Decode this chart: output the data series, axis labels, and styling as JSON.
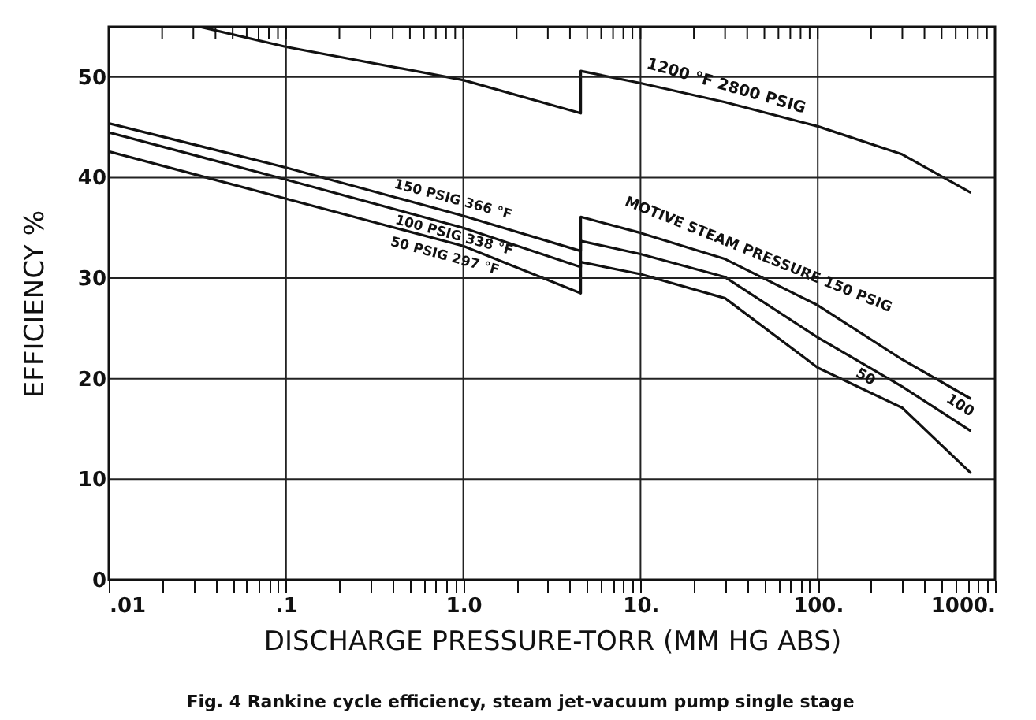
{
  "chart_data": {
    "type": "line",
    "xlabel": "DISCHARGE PRESSURE-TORR (MM HG ABS)",
    "ylabel": "EFFICIENCY %",
    "log": "x",
    "xlim": [
      0.01,
      1000
    ],
    "ylim": [
      0,
      55
    ],
    "xticks": [
      {
        "value": 0.01,
        "label": ".01"
      },
      {
        "value": 0.02,
        "label": null
      },
      {
        "value": 0.03,
        "label": null
      },
      {
        "value": 0.04,
        "label": null
      },
      {
        "value": 0.05,
        "label": null
      },
      {
        "value": 0.06,
        "label": null
      },
      {
        "value": 0.07,
        "label": null
      },
      {
        "value": 0.08,
        "label": null
      },
      {
        "value": 0.09,
        "label": null
      },
      {
        "value": 0.1,
        "label": ".1"
      },
      {
        "value": 0.2,
        "label": null
      },
      {
        "value": 0.3,
        "label": null
      },
      {
        "value": 0.4,
        "label": null
      },
      {
        "value": 0.5,
        "label": null
      },
      {
        "value": 0.6,
        "label": null
      },
      {
        "value": 0.7,
        "label": null
      },
      {
        "value": 0.8,
        "label": null
      },
      {
        "value": 0.9,
        "label": null
      },
      {
        "value": 1,
        "label": "1.0"
      },
      {
        "value": 2,
        "label": null
      },
      {
        "value": 3,
        "label": null
      },
      {
        "value": 4,
        "label": null
      },
      {
        "value": 5,
        "label": null
      },
      {
        "value": 6,
        "label": null
      },
      {
        "value": 7,
        "label": null
      },
      {
        "value": 8,
        "label": null
      },
      {
        "value": 9,
        "label": null
      },
      {
        "value": 10,
        "label": "10."
      },
      {
        "value": 20,
        "label": null
      },
      {
        "value": 30,
        "label": null
      },
      {
        "value": 40,
        "label": null
      },
      {
        "value": 50,
        "label": null
      },
      {
        "value": 60,
        "label": null
      },
      {
        "value": 70,
        "label": null
      },
      {
        "value": 80,
        "label": null
      },
      {
        "value": 90,
        "label": null
      },
      {
        "value": 100,
        "label": "100."
      },
      {
        "value": 200,
        "label": null
      },
      {
        "value": 300,
        "label": null
      },
      {
        "value": 400,
        "label": null
      },
      {
        "value": 500,
        "label": null
      },
      {
        "value": 600,
        "label": null
      },
      {
        "value": 700,
        "label": null
      },
      {
        "value": 800,
        "label": null
      },
      {
        "value": 900,
        "label": null
      },
      {
        "value": 1000,
        "label": "1000."
      }
    ],
    "yticks": [
      0,
      10,
      20,
      30,
      40,
      50
    ],
    "grid": true,
    "marker": "none",
    "line_style": "solid",
    "series": [
      {
        "color": "#111111",
        "x": [
          0.0328,
          0.1,
          1,
          4.6,
          4.6,
          10,
          30,
          100,
          300,
          731
        ],
        "values": [
          55,
          53.0,
          49.7,
          46.4,
          50.6,
          49.4,
          47.5,
          45.1,
          42.3,
          38.5
        ]
      },
      {
        "color": "#111111",
        "x": [
          0.01,
          0.1,
          1,
          4.6,
          4.6,
          10,
          30,
          100,
          300,
          731
        ],
        "values": [
          45.4,
          41.0,
          36.2,
          32.7,
          36.1,
          34.5,
          31.9,
          27.3,
          21.9,
          18.0
        ]
      },
      {
        "color": "#111111",
        "x": [
          0.01,
          0.1,
          1,
          4.6,
          4.6,
          10,
          30,
          100,
          300,
          731
        ],
        "values": [
          44.5,
          39.8,
          35.0,
          31.1,
          33.7,
          32.4,
          30.1,
          24.1,
          19.2,
          14.8
        ]
      },
      {
        "color": "#111111",
        "x": [
          0.01,
          0.1,
          1,
          4.6,
          4.6,
          10,
          30,
          100,
          300,
          731
        ],
        "values": [
          42.6,
          37.9,
          33.2,
          28.5,
          31.6,
          30.4,
          28.0,
          21.1,
          17.1,
          10.6
        ]
      }
    ],
    "annotations": [
      "1200 °F  2800 PSIG",
      "150 PSIG  366 °F",
      "100 PSIG  338 °F",
      "50 PSIG  297 °F",
      "MOTIVE STEAM PRESSURE 150 PSIG",
      "100",
      "50",
      "Fig. 4   Rankine cycle efficiency, steam jet-vacuum pump single stage"
    ]
  }
}
